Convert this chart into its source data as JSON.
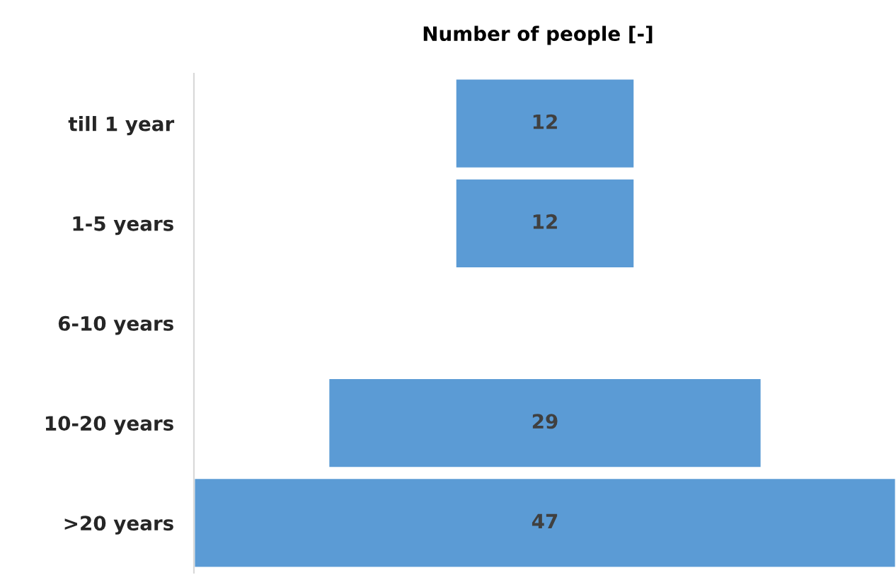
{
  "chart_data": {
    "type": "other",
    "title": "Number of people [-]",
    "categories": [
      "till 1 year",
      "1-5 years",
      "6-10 years",
      "10-20 years",
      ">20 years"
    ],
    "values": [
      12,
      12,
      null,
      29,
      47
    ],
    "color": "#5b9bd5",
    "data_labels": true
  }
}
